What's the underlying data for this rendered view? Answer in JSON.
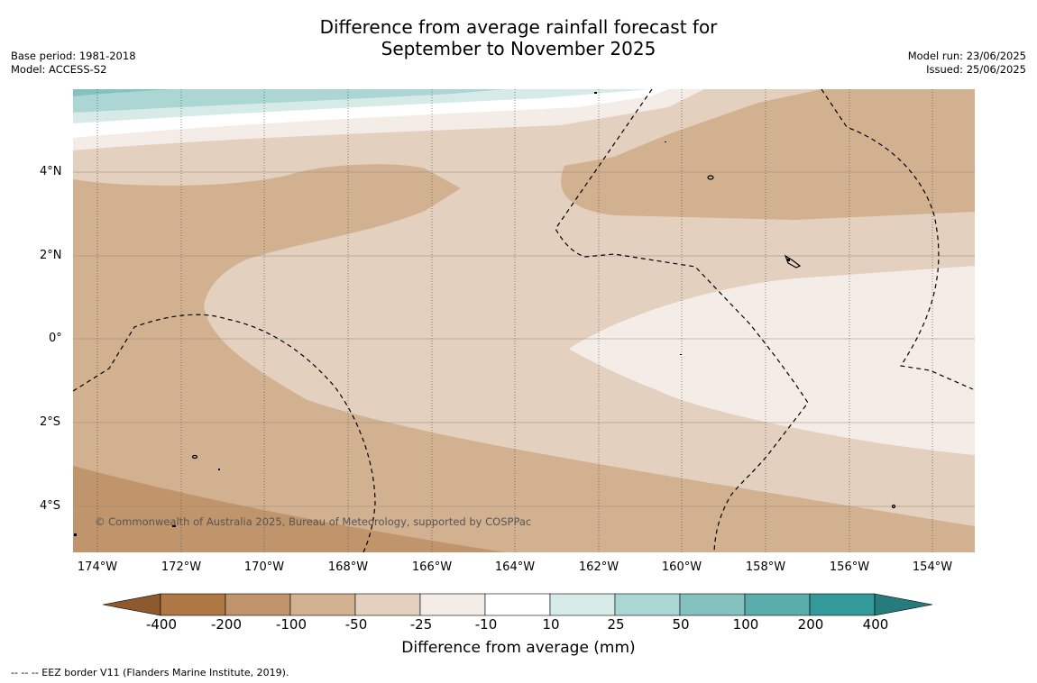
{
  "title": {
    "line1": "Difference from average rainfall forecast for",
    "line2": "September to November 2025"
  },
  "meta_left": {
    "base_period": "Base period: 1981-2018",
    "model": "Model: ACCESS-S2"
  },
  "meta_right": {
    "model_run": "Model run: 23/06/2025",
    "issued": "Issued: 25/06/2025"
  },
  "map": {
    "lat_labels": [
      "4°N",
      "2°N",
      "0°",
      "2°S",
      "4°S"
    ],
    "lon_labels": [
      "174°W",
      "172°W",
      "170°W",
      "168°W",
      "166°W",
      "164°W",
      "162°W",
      "160°W",
      "158°W",
      "156°W",
      "154°W"
    ],
    "credit": "© Commonwealth of Australia 2025, Bureau of Meteorology, supported by COSPPac"
  },
  "colorbar": {
    "title": "Difference from average (mm)",
    "ticks": [
      "-400",
      "-200",
      "-100",
      "-50",
      "-25",
      "-10",
      "10",
      "25",
      "50",
      "100",
      "200",
      "400"
    ],
    "colors": [
      "#8c5a2e",
      "#ad7843",
      "#c0956b",
      "#d2b190",
      "#e3d0be",
      "#f4ede7",
      "#ffffff",
      "#d6eae8",
      "#acd6d4",
      "#84c2c0",
      "#5aadaa",
      "#33999a",
      "#267c7c"
    ]
  },
  "footnote": "--  --  -- EEZ border V11 (Flanders Marine Institute, 2019)."
}
